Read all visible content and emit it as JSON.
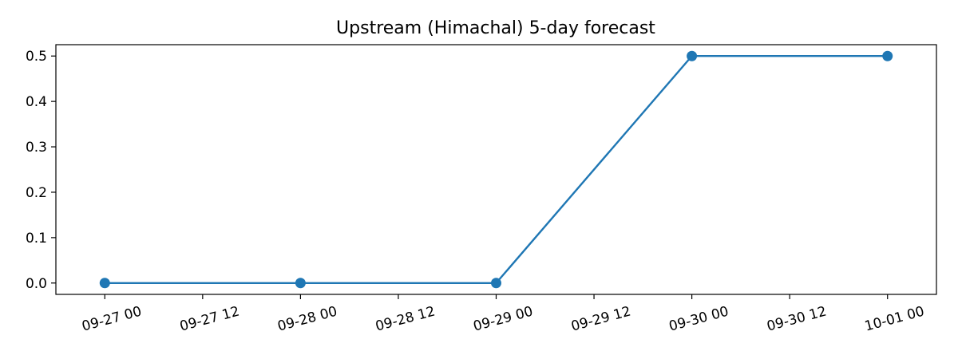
{
  "chart_data": {
    "type": "line",
    "title": "Upstream (Himachal) 5-day forecast",
    "xlabel": "",
    "ylabel": "",
    "x": [
      "09-27 00",
      "09-28 00",
      "09-29 00",
      "09-30 00",
      "10-01 00"
    ],
    "series": [
      {
        "values": [
          0.0,
          0.0,
          0.0,
          0.5,
          0.5
        ],
        "color": "#1f77b4",
        "marker": "circle"
      }
    ],
    "xticks": [
      "09-27 00",
      "09-27 12",
      "09-28 00",
      "09-28 12",
      "09-29 00",
      "09-29 12",
      "09-30 00",
      "09-30 12",
      "10-01 00"
    ],
    "yticks": [
      "0.0",
      "0.1",
      "0.2",
      "0.3",
      "0.4",
      "0.5"
    ],
    "xlim": [
      "09-26 18",
      "10-01 06"
    ],
    "ylim": [
      -0.025,
      0.525
    ],
    "grid": false,
    "legend": "none"
  }
}
